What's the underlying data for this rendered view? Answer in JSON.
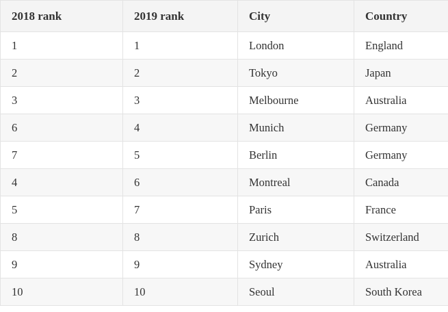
{
  "table": {
    "header": [
      "2018 rank",
      "2019 rank",
      "City",
      "Country"
    ],
    "rows": [
      [
        "1",
        "1",
        "London",
        "England"
      ],
      [
        "2",
        "2",
        "Tokyo",
        "Japan"
      ],
      [
        "3",
        "3",
        "Melbourne",
        "Australia"
      ],
      [
        "6",
        "4",
        "Munich",
        "Germany"
      ],
      [
        "7",
        "5",
        "Berlin",
        "Germany"
      ],
      [
        "4",
        "6",
        "Montreal",
        "Canada"
      ],
      [
        "5",
        "7",
        "Paris",
        "France"
      ],
      [
        "8",
        "8",
        "Zurich",
        "Switzerland"
      ],
      [
        "9",
        "9",
        "Sydney",
        "Australia"
      ],
      [
        "10",
        "10",
        "Seoul",
        "South Korea"
      ]
    ]
  }
}
